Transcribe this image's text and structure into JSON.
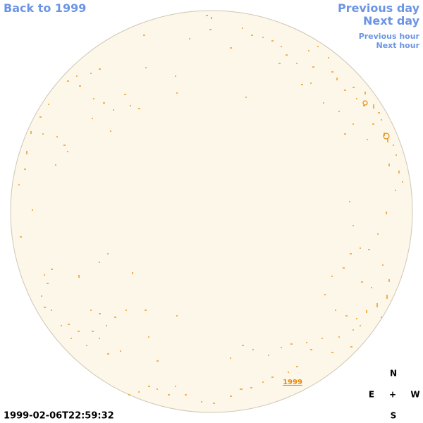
{
  "nav": {
    "back": "Back to 1999",
    "previous_day": "Previous day",
    "next_day": "Next day",
    "previous_hour": "Previous hour",
    "next_hour": "Next hour"
  },
  "timestamp": "1999-02-06T22:59:32",
  "compass": {
    "north": "N",
    "east": "E",
    "center": "+",
    "west": "W",
    "south": "S"
  },
  "disk_label": "1999"
}
